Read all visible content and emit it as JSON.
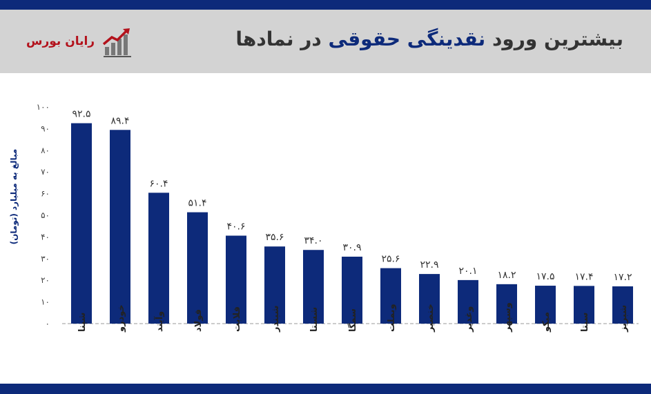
{
  "header": {
    "title_part1": "بیشترین ورود",
    "title_highlight": "نقدینگی حقوقی",
    "title_part2": "در نمادها",
    "brand_name": "رایان بورس",
    "brand_logo_icon": "growth-chart-logo-icon"
  },
  "colors": {
    "bar": "#0d2a7a",
    "header_bg": "#d3d3d3",
    "frame": "#0d2a7a",
    "brand": "#b3121c"
  },
  "chart_data": {
    "type": "bar",
    "ylabel": "مبالغ به میلیارد (تومان)",
    "ylim": [
      0,
      100
    ],
    "yticks": [
      "۰",
      "۱۰",
      "۲۰",
      "۳۰",
      "۴۰",
      "۵۰",
      "۶۰",
      "۷۰",
      "۸۰",
      "۹۰",
      "۱۰۰"
    ],
    "categories": [
      "شپنا",
      "خودرو",
      "وآیند",
      "فولاد",
      "فلابت",
      "شبندر",
      "شستا",
      "سمگا",
      "وبملت",
      "خنصیر",
      "وغدیر",
      "وسپهر",
      "میکو",
      "سیتا",
      "شبریز"
    ],
    "values": [
      92.5,
      89.4,
      60.4,
      51.4,
      40.6,
      35.6,
      34.0,
      30.9,
      25.6,
      22.9,
      20.1,
      18.2,
      17.5,
      17.4,
      17.2
    ],
    "value_labels": [
      "۹۲.۵",
      "۸۹.۴",
      "۶۰.۴",
      "۵۱.۴",
      "۴۰.۶",
      "۳۵.۶",
      "۳۴.۰",
      "۳۰.۹",
      "۲۵.۶",
      "۲۲.۹",
      "۲۰.۱",
      "۱۸.۲",
      "۱۷.۵",
      "۱۷.۴",
      "۱۷.۲"
    ],
    "grid": false,
    "baseline": "dashed"
  }
}
